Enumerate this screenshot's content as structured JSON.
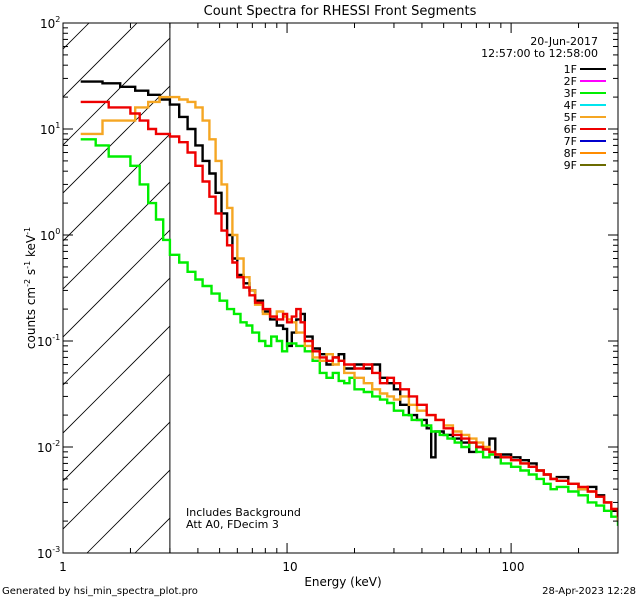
{
  "chart_data": {
    "type": "line",
    "title": "Count Spectra for RHESSI Front Segments",
    "xlabel": "Energy (keV)",
    "ylabel": {
      "base": "counts cm",
      "exp1": "-2",
      "mid1": " s",
      "exp2": "-1",
      "mid2": " keV",
      "exp3": "-1"
    },
    "x_scale": "log",
    "y_scale": "log",
    "xlim": [
      1,
      300
    ],
    "ylim": [
      0.001,
      100
    ],
    "x_ticks": [
      {
        "value": 1,
        "label": "1"
      },
      {
        "value": 10,
        "label": "10"
      },
      {
        "value": 100,
        "label": "100"
      }
    ],
    "y_ticks": [
      {
        "value": 100,
        "base": "10",
        "exp": "2"
      },
      {
        "value": 10,
        "base": "10",
        "exp": "1"
      },
      {
        "value": 1,
        "base": "10",
        "exp": "0"
      },
      {
        "value": 0.1,
        "base": "10",
        "exp": "-1"
      },
      {
        "value": 0.01,
        "base": "10",
        "exp": "-2"
      },
      {
        "value": 0.001,
        "base": "10",
        "exp": "-3"
      }
    ],
    "date": "20-Jun-2017",
    "time_range": "12:57:00 to 12:58:00",
    "hatched_region": {
      "x_min": 1,
      "x_max": 3
    },
    "annotations": [
      "Includes Background",
      "Att A0, FDecim 3"
    ],
    "legend_position": "top-right",
    "series": [
      {
        "name": "1F",
        "color": "#000000",
        "points": [
          [
            1.2,
            28
          ],
          [
            1.5,
            27
          ],
          [
            1.8,
            25
          ],
          [
            2.1,
            23
          ],
          [
            2.4,
            21
          ],
          [
            2.7,
            19
          ],
          [
            3.0,
            17
          ],
          [
            3.3,
            13
          ],
          [
            3.6,
            10
          ],
          [
            3.9,
            7
          ],
          [
            4.2,
            5
          ],
          [
            4.5,
            3.8
          ],
          [
            4.8,
            2.5
          ],
          [
            5.1,
            1.6
          ],
          [
            5.4,
            1.0
          ],
          [
            5.7,
            0.6
          ],
          [
            6.0,
            0.42
          ],
          [
            6.4,
            0.35
          ],
          [
            6.8,
            0.3
          ],
          [
            7.2,
            0.24
          ],
          [
            7.8,
            0.19
          ],
          [
            8.4,
            0.16
          ],
          [
            9.0,
            0.14
          ],
          [
            9.6,
            0.13
          ],
          [
            10,
            0.09
          ],
          [
            10.5,
            0.12
          ],
          [
            11,
            0.16
          ],
          [
            11.5,
            0.18
          ],
          [
            12,
            0.11
          ],
          [
            13,
            0.085
          ],
          [
            14,
            0.075
          ],
          [
            15,
            0.06
          ],
          [
            16,
            0.07
          ],
          [
            17,
            0.075
          ],
          [
            18,
            0.055
          ],
          [
            20,
            0.06
          ],
          [
            22,
            0.055
          ],
          [
            24,
            0.06
          ],
          [
            26,
            0.045
          ],
          [
            28,
            0.04
          ],
          [
            30,
            0.035
          ],
          [
            32,
            0.025
          ],
          [
            35,
            0.02
          ],
          [
            38,
            0.018
          ],
          [
            42,
            0.015
          ],
          [
            44,
            0.008
          ],
          [
            46,
            0.014
          ],
          [
            50,
            0.013
          ],
          [
            55,
            0.012
          ],
          [
            60,
            0.011
          ],
          [
            65,
            0.009
          ],
          [
            70,
            0.01
          ],
          [
            75,
            0.0095
          ],
          [
            80,
            0.012
          ],
          [
            85,
            0.008
          ],
          [
            90,
            0.0085
          ],
          [
            100,
            0.008
          ],
          [
            110,
            0.0075
          ],
          [
            120,
            0.007
          ],
          [
            130,
            0.006
          ],
          [
            140,
            0.0055
          ],
          [
            150,
            0.005
          ],
          [
            160,
            0.0052
          ],
          [
            180,
            0.0045
          ],
          [
            200,
            0.004
          ],
          [
            220,
            0.0042
          ],
          [
            240,
            0.0035
          ],
          [
            260,
            0.003
          ],
          [
            280,
            0.0025
          ],
          [
            300,
            0.002
          ]
        ]
      },
      {
        "name": "2F",
        "color": "#ff00ff",
        "points": []
      },
      {
        "name": "3F",
        "color": "#00ee00",
        "points": [
          [
            1.2,
            8
          ],
          [
            1.4,
            7
          ],
          [
            1.6,
            5.5
          ],
          [
            1.8,
            5.5
          ],
          [
            2.0,
            4.5
          ],
          [
            2.2,
            3.0
          ],
          [
            2.4,
            2.0
          ],
          [
            2.6,
            1.4
          ],
          [
            2.8,
            0.9
          ],
          [
            3.0,
            0.65
          ],
          [
            3.3,
            0.55
          ],
          [
            3.6,
            0.45
          ],
          [
            3.9,
            0.38
          ],
          [
            4.2,
            0.33
          ],
          [
            4.6,
            0.28
          ],
          [
            5.0,
            0.24
          ],
          [
            5.4,
            0.2
          ],
          [
            5.8,
            0.18
          ],
          [
            6.2,
            0.15
          ],
          [
            6.6,
            0.14
          ],
          [
            7.0,
            0.12
          ],
          [
            7.5,
            0.1
          ],
          [
            8.0,
            0.09
          ],
          [
            8.5,
            0.11
          ],
          [
            9.0,
            0.1
          ],
          [
            9.5,
            0.08
          ],
          [
            10,
            0.095
          ],
          [
            11,
            0.09
          ],
          [
            12,
            0.08
          ],
          [
            13,
            0.065
          ],
          [
            14,
            0.05
          ],
          [
            15,
            0.045
          ],
          [
            16,
            0.05
          ],
          [
            17,
            0.042
          ],
          [
            18,
            0.04
          ],
          [
            19,
            0.045
          ],
          [
            20,
            0.035
          ],
          [
            22,
            0.033
          ],
          [
            24,
            0.03
          ],
          [
            26,
            0.028
          ],
          [
            28,
            0.026
          ],
          [
            30,
            0.022
          ],
          [
            33,
            0.02
          ],
          [
            36,
            0.018
          ],
          [
            40,
            0.016
          ],
          [
            44,
            0.014
          ],
          [
            48,
            0.013
          ],
          [
            52,
            0.012
          ],
          [
            56,
            0.011
          ],
          [
            60,
            0.01
          ],
          [
            65,
            0.011
          ],
          [
            70,
            0.009
          ],
          [
            75,
            0.008
          ],
          [
            80,
            0.0085
          ],
          [
            90,
            0.007
          ],
          [
            100,
            0.0065
          ],
          [
            110,
            0.006
          ],
          [
            120,
            0.0055
          ],
          [
            130,
            0.005
          ],
          [
            140,
            0.0045
          ],
          [
            150,
            0.004
          ],
          [
            160,
            0.0042
          ],
          [
            180,
            0.0038
          ],
          [
            200,
            0.0035
          ],
          [
            220,
            0.003
          ],
          [
            240,
            0.0028
          ],
          [
            260,
            0.0025
          ],
          [
            280,
            0.0022
          ],
          [
            300,
            0.0018
          ]
        ]
      },
      {
        "name": "4F",
        "color": "#00e5ee",
        "points": []
      },
      {
        "name": "5F",
        "color": "#f5a623",
        "points": [
          [
            1.2,
            9
          ],
          [
            1.3,
            9
          ],
          [
            1.5,
            12
          ],
          [
            1.8,
            12
          ],
          [
            2.1,
            16
          ],
          [
            2.4,
            18
          ],
          [
            2.7,
            20
          ],
          [
            3.0,
            20
          ],
          [
            3.3,
            19
          ],
          [
            3.6,
            18
          ],
          [
            3.9,
            16
          ],
          [
            4.2,
            12
          ],
          [
            4.5,
            8
          ],
          [
            4.8,
            5
          ],
          [
            5.1,
            3.0
          ],
          [
            5.4,
            1.8
          ],
          [
            5.7,
            1.0
          ],
          [
            6.0,
            0.6
          ],
          [
            6.4,
            0.4
          ],
          [
            6.8,
            0.3
          ],
          [
            7.2,
            0.22
          ],
          [
            7.8,
            0.18
          ],
          [
            8.4,
            0.17
          ],
          [
            9.0,
            0.19
          ],
          [
            9.6,
            0.17
          ],
          [
            10,
            0.16
          ],
          [
            10.5,
            0.15
          ],
          [
            11,
            0.12
          ],
          [
            12,
            0.09
          ],
          [
            13,
            0.07
          ],
          [
            14,
            0.065
          ],
          [
            15,
            0.075
          ],
          [
            16,
            0.06
          ],
          [
            17,
            0.065
          ],
          [
            18,
            0.05
          ],
          [
            20,
            0.045
          ],
          [
            22,
            0.04
          ],
          [
            24,
            0.035
          ],
          [
            26,
            0.032
          ],
          [
            28,
            0.03
          ],
          [
            30,
            0.028
          ],
          [
            32,
            0.03
          ],
          [
            35,
            0.025
          ],
          [
            38,
            0.022
          ],
          [
            42,
            0.02
          ],
          [
            46,
            0.018
          ],
          [
            50,
            0.016
          ],
          [
            55,
            0.014
          ],
          [
            60,
            0.013
          ],
          [
            65,
            0.012
          ],
          [
            70,
            0.011
          ],
          [
            75,
            0.01
          ],
          [
            80,
            0.009
          ],
          [
            85,
            0.0085
          ],
          [
            90,
            0.008
          ],
          [
            100,
            0.0075
          ],
          [
            110,
            0.007
          ],
          [
            120,
            0.0065
          ],
          [
            130,
            0.006
          ],
          [
            140,
            0.0055
          ],
          [
            150,
            0.005
          ],
          [
            160,
            0.0048
          ],
          [
            180,
            0.0045
          ],
          [
            200,
            0.004
          ],
          [
            220,
            0.0038
          ],
          [
            240,
            0.0034
          ],
          [
            260,
            0.003
          ],
          [
            280,
            0.0026
          ],
          [
            300,
            0.002
          ]
        ]
      },
      {
        "name": "6F",
        "color": "#ee0000",
        "points": [
          [
            1.2,
            18
          ],
          [
            1.4,
            18
          ],
          [
            1.6,
            16
          ],
          [
            1.8,
            16
          ],
          [
            2.0,
            14
          ],
          [
            2.2,
            12
          ],
          [
            2.4,
            10
          ],
          [
            2.6,
            9
          ],
          [
            2.8,
            9
          ],
          [
            3.0,
            8.5
          ],
          [
            3.3,
            7.5
          ],
          [
            3.6,
            6
          ],
          [
            3.9,
            4.5
          ],
          [
            4.2,
            3.2
          ],
          [
            4.5,
            2.3
          ],
          [
            4.8,
            1.6
          ],
          [
            5.1,
            1.1
          ],
          [
            5.4,
            0.8
          ],
          [
            5.7,
            0.55
          ],
          [
            6.0,
            0.4
          ],
          [
            6.4,
            0.32
          ],
          [
            6.8,
            0.27
          ],
          [
            7.2,
            0.23
          ],
          [
            7.8,
            0.2
          ],
          [
            8.4,
            0.17
          ],
          [
            9.0,
            0.16
          ],
          [
            9.6,
            0.18
          ],
          [
            10,
            0.15
          ],
          [
            10.5,
            0.17
          ],
          [
            11,
            0.2
          ],
          [
            11.5,
            0.15
          ],
          [
            12,
            0.1
          ],
          [
            13,
            0.08
          ],
          [
            14,
            0.07
          ],
          [
            15,
            0.065
          ],
          [
            16,
            0.07
          ],
          [
            17,
            0.065
          ],
          [
            18,
            0.06
          ],
          [
            20,
            0.055
          ],
          [
            22,
            0.06
          ],
          [
            24,
            0.05
          ],
          [
            26,
            0.04
          ],
          [
            28,
            0.045
          ],
          [
            30,
            0.04
          ],
          [
            32,
            0.035
          ],
          [
            35,
            0.03
          ],
          [
            38,
            0.025
          ],
          [
            42,
            0.02
          ],
          [
            46,
            0.018
          ],
          [
            50,
            0.015
          ],
          [
            55,
            0.013
          ],
          [
            60,
            0.012
          ],
          [
            65,
            0.011
          ],
          [
            70,
            0.01
          ],
          [
            75,
            0.0095
          ],
          [
            80,
            0.009
          ],
          [
            85,
            0.0085
          ],
          [
            90,
            0.008
          ],
          [
            100,
            0.0075
          ],
          [
            110,
            0.007
          ],
          [
            120,
            0.0065
          ],
          [
            130,
            0.006
          ],
          [
            140,
            0.0055
          ],
          [
            150,
            0.005
          ],
          [
            160,
            0.0048
          ],
          [
            180,
            0.0045
          ],
          [
            200,
            0.0042
          ],
          [
            220,
            0.0038
          ],
          [
            240,
            0.0034
          ],
          [
            260,
            0.003
          ],
          [
            280,
            0.0026
          ],
          [
            300,
            0.0022
          ]
        ]
      },
      {
        "name": "7F",
        "color": "#0000cd",
        "points": []
      },
      {
        "name": "8F",
        "color": "#ff8c00",
        "points": []
      },
      {
        "name": "9F",
        "color": "#6b6b00",
        "points": []
      }
    ]
  },
  "footer": {
    "generated_by": "Generated by hsi_min_spectra_plot.pro",
    "timestamp": "28-Apr-2023 12:28"
  }
}
